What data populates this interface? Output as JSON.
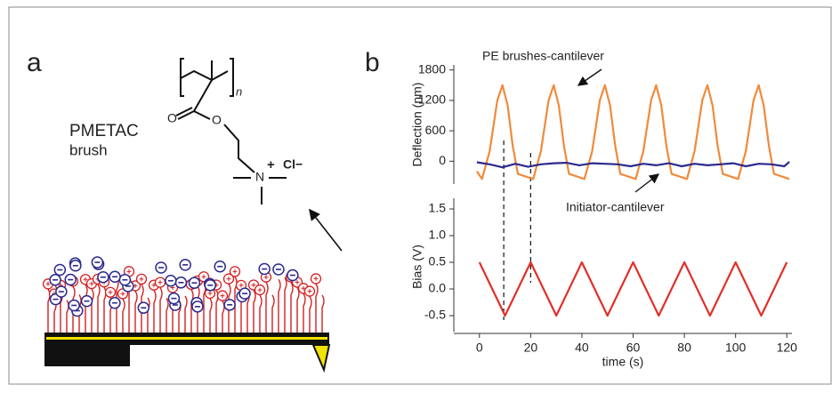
{
  "panel_labels": [
    "a",
    "b"
  ],
  "panel_a": {
    "polymer_name": "PMETAC",
    "polymer_subtitle": "brush",
    "counterion": "Cl−",
    "charge": "+",
    "repeat_subscript": "n"
  },
  "chart_data": [
    {
      "type": "line",
      "y_label": "Deflection (nm)",
      "xlim": [
        -10,
        122
      ],
      "ylim": [
        -450,
        1900
      ],
      "yticks": [
        1800,
        1200,
        600,
        0
      ],
      "vlines": [
        9.5,
        20
      ],
      "series": [
        {
          "name": "PE brushes-cantilever",
          "color": "#f08a3c",
          "x": [
            -1,
            1,
            4,
            7,
            9,
            11,
            13,
            15,
            18,
            21,
            24,
            27,
            29,
            31,
            33,
            35,
            38,
            41,
            44,
            47,
            49,
            51,
            53,
            55,
            58,
            61,
            64,
            67,
            69,
            71,
            73,
            75,
            78,
            81,
            84,
            87,
            89,
            91,
            93,
            95,
            98,
            101,
            104,
            107,
            109,
            111,
            113,
            115,
            118,
            121
          ],
          "values": [
            -200,
            -350,
            200,
            1200,
            1500,
            1100,
            300,
            -250,
            -300,
            -350,
            200,
            1200,
            1500,
            1100,
            300,
            -250,
            -300,
            -350,
            200,
            1200,
            1500,
            1100,
            300,
            -250,
            -300,
            -350,
            200,
            1200,
            1500,
            1100,
            300,
            -250,
            -300,
            -350,
            200,
            1200,
            1500,
            1100,
            300,
            -250,
            -300,
            -350,
            200,
            1200,
            1500,
            1100,
            300,
            -250,
            -300,
            -350
          ]
        },
        {
          "name": "Initiator-cantilever",
          "color": "#2b2a8c",
          "x": [
            -1,
            4,
            9,
            14,
            19,
            24,
            29,
            34,
            39,
            44,
            49,
            54,
            59,
            64,
            69,
            74,
            79,
            84,
            89,
            94,
            99,
            104,
            109,
            114,
            119,
            121
          ],
          "values": [
            -20,
            -60,
            -120,
            -50,
            -110,
            -60,
            -40,
            -30,
            -80,
            -40,
            -50,
            -60,
            -100,
            -50,
            -80,
            -40,
            -100,
            -50,
            -80,
            -60,
            -40,
            -100,
            -50,
            -60,
            -100,
            -10
          ]
        }
      ]
    },
    {
      "type": "line",
      "y_label": "Bias (V)",
      "x_label": "time (s)",
      "xlim": [
        -10,
        122
      ],
      "ylim": [
        -0.8,
        1.7
      ],
      "xticks": [
        0,
        20,
        40,
        60,
        80,
        100,
        120
      ],
      "yticks": [
        1.5,
        {
          "value": 1,
          "label": "1.0"
        },
        0.5,
        {
          "value": 0,
          "label": "0.0"
        },
        -0.5
      ],
      "series": [
        {
          "color": "#e0302a",
          "x": [
            0,
            10,
            20,
            30,
            40,
            50,
            60,
            70,
            80,
            90,
            100,
            110,
            120
          ],
          "values": [
            0.5,
            -0.5,
            0.5,
            -0.5,
            0.5,
            -0.5,
            0.5,
            -0.5,
            0.5,
            -0.5,
            0.5,
            -0.5,
            0.5
          ]
        }
      ]
    }
  ]
}
